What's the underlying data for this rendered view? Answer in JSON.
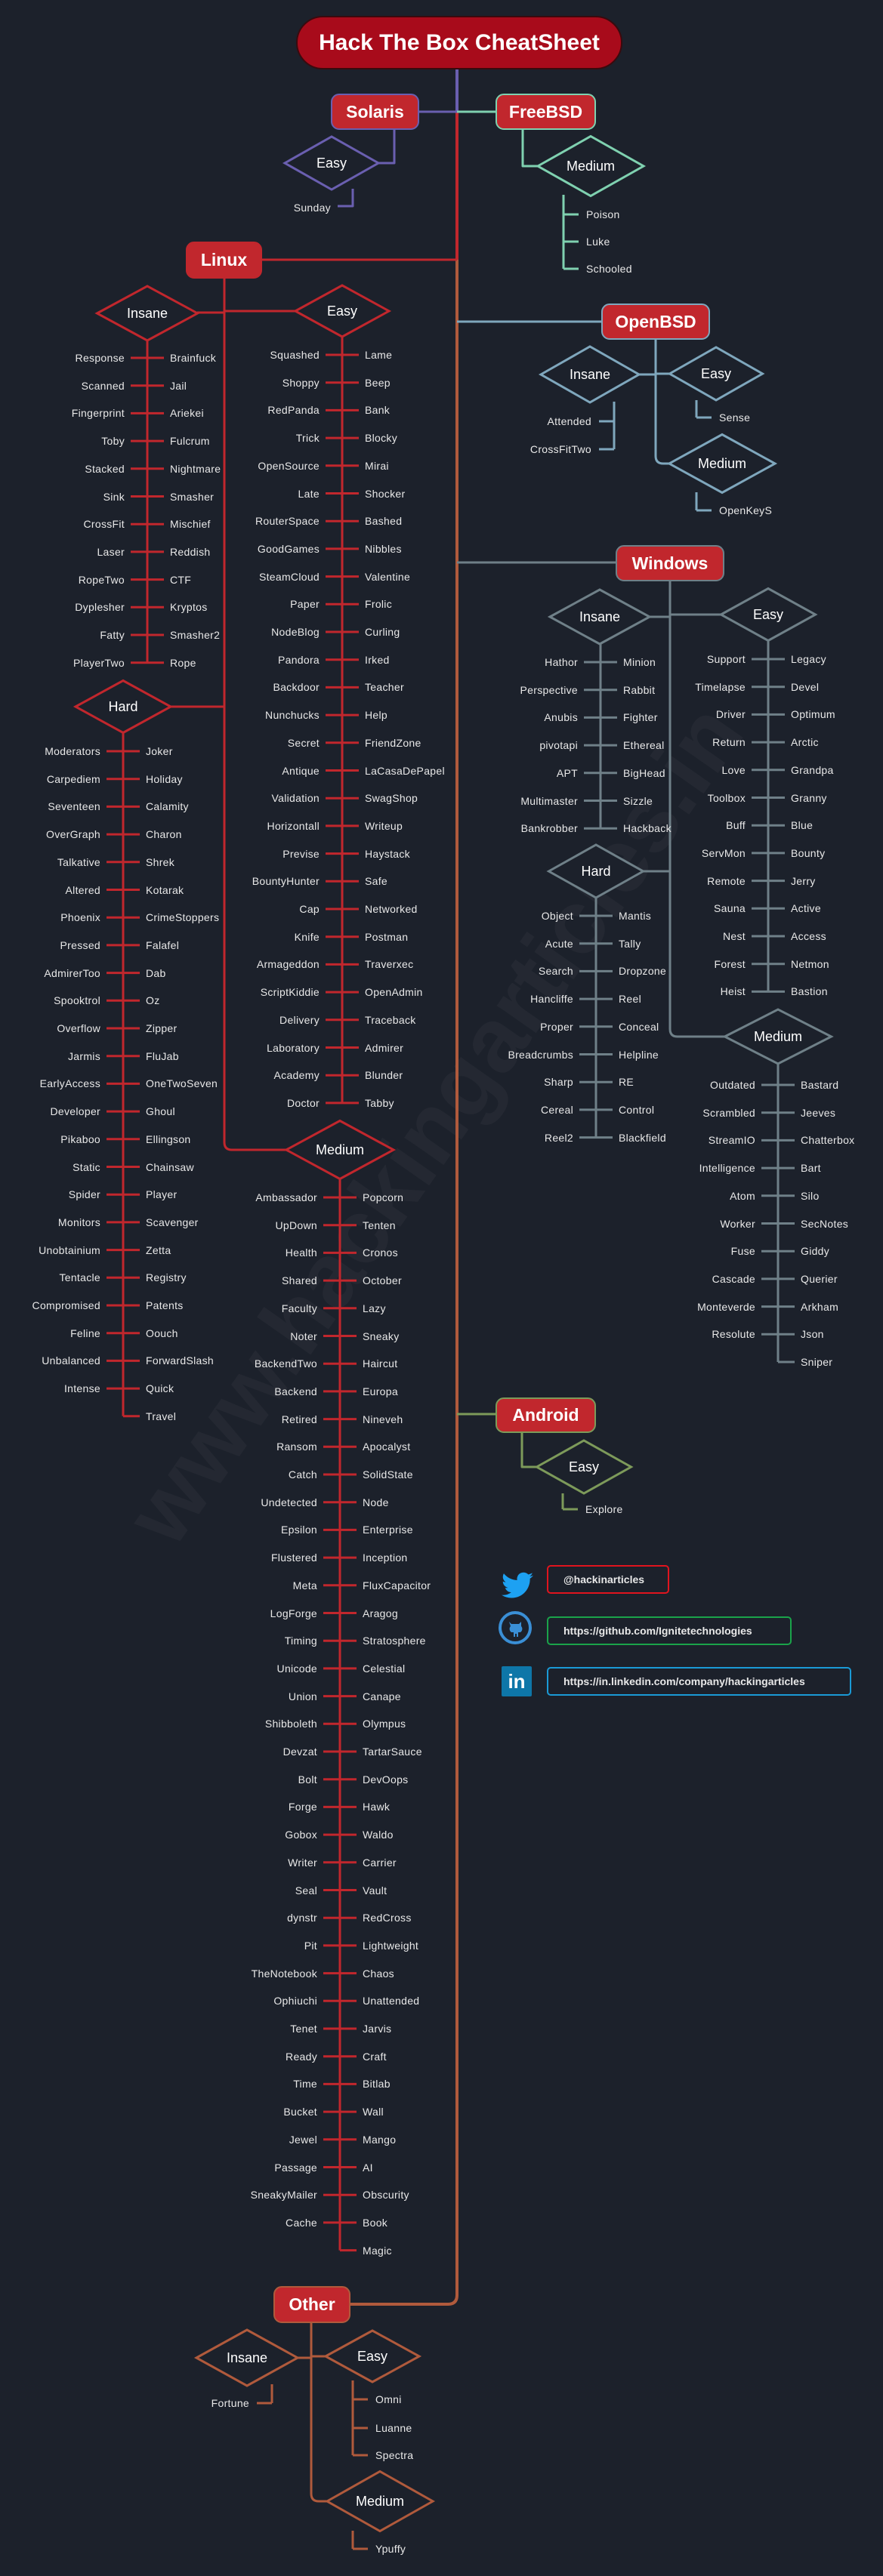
{
  "title": "Hack The Box CheatSheet",
  "watermark": "www.hackingarticles.in",
  "colors": {
    "background": "#1c212b",
    "title_fill": "#a80b1b",
    "category_fill": "#c1272d",
    "solaris": "#6a5fb0",
    "freebsd": "#7fd1b0",
    "linux": "#c1272d",
    "openbsd": "#7fa7bd",
    "windows": "#6f8088",
    "android": "#7d9a5a",
    "other": "#b05a3c"
  },
  "categories": {
    "solaris": {
      "label": "Solaris",
      "groups": {
        "easy": {
          "label": "Easy",
          "items": [
            "Sunday"
          ]
        }
      }
    },
    "freebsd": {
      "label": "FreeBSD",
      "groups": {
        "medium": {
          "label": "Medium",
          "items": [
            "Poison",
            "Luke",
            "Schooled"
          ]
        }
      }
    },
    "linux": {
      "label": "Linux",
      "groups": {
        "insane": {
          "label": "Insane",
          "left": [
            "Response",
            "Scanned",
            "Fingerprint",
            "Toby",
            "Stacked",
            "Sink",
            "CrossFit",
            "Laser",
            "RopeTwo",
            "Dyplesher",
            "Fatty",
            "PlayerTwo"
          ],
          "right": [
            "Brainfuck",
            "Jail",
            "Ariekei",
            "Fulcrum",
            "Nightmare",
            "Smasher",
            "Mischief",
            "Reddish",
            "CTF",
            "Kryptos",
            "Smasher2",
            "Rope"
          ]
        },
        "easy": {
          "label": "Easy",
          "left": [
            "Squashed",
            "Shoppy",
            "RedPanda",
            "Trick",
            "OpenSource",
            "Late",
            "RouterSpace",
            "GoodGames",
            "SteamCloud",
            "Paper",
            "NodeBlog",
            "Pandora",
            "Backdoor",
            "Nunchucks",
            "Secret",
            "Antique",
            "Validation",
            "Horizontall",
            "Previse",
            "BountyHunter",
            "Cap",
            "Knife",
            "Armageddon",
            "ScriptKiddie",
            "Delivery",
            "Laboratory",
            "Academy",
            "Doctor"
          ],
          "right": [
            "Lame",
            "Beep",
            "Bank",
            "Blocky",
            "Mirai",
            "Shocker",
            "Bashed",
            "Nibbles",
            "Valentine",
            "Frolic",
            "Curling",
            "Irked",
            "Teacher",
            "Help",
            "FriendZone",
            "LaCasaDePapel",
            "SwagShop",
            "Writeup",
            "Haystack",
            "Safe",
            "Networked",
            "Postman",
            "Traverxec",
            "OpenAdmin",
            "Traceback",
            "Admirer",
            "Blunder",
            "Tabby"
          ]
        },
        "hard": {
          "label": "Hard",
          "left": [
            "Moderators",
            "Carpediem",
            "Seventeen",
            "OverGraph",
            "Talkative",
            "Altered",
            "Phoenix",
            "Pressed",
            "AdmirerToo",
            "Spooktrol",
            "Overflow",
            "Jarmis",
            "EarlyAccess",
            "Developer",
            "Pikaboo",
            "Static",
            "Spider",
            "Monitors",
            "Unobtainium",
            "Tentacle",
            "Compromised",
            "Feline",
            "Unbalanced",
            "Intense"
          ],
          "right": [
            "Joker",
            "Holiday",
            "Calamity",
            "Charon",
            "Shrek",
            "Kotarak",
            "CrimeStoppers",
            "Falafel",
            "Dab",
            "Oz",
            "Zipper",
            "FluJab",
            "OneTwoSeven",
            "Ghoul",
            "Ellingson",
            "Chainsaw",
            "Player",
            "Scavenger",
            "Zetta",
            "Registry",
            "Patents",
            "Oouch",
            "ForwardSlash",
            "Quick",
            "Travel"
          ]
        },
        "medium": {
          "label": "Medium",
          "left": [
            "Ambassador",
            "UpDown",
            "Health",
            "Shared",
            "Faculty",
            "Noter",
            "BackendTwo",
            "Backend",
            "Retired",
            "Ransom",
            "Catch",
            "Undetected",
            "Epsilon",
            "Flustered",
            "Meta",
            "LogForge",
            "Timing",
            "Unicode",
            "Union",
            "Shibboleth",
            "Devzat",
            "Bolt",
            "Forge",
            "Gobox",
            "Writer",
            "Seal",
            "dynstr",
            "Pit",
            "TheNotebook",
            "Ophiuchi",
            "Tenet",
            "Ready",
            "Time",
            "Bucket",
            "Jewel",
            "Passage",
            "SneakyMailer",
            "Cache"
          ],
          "right": [
            "Popcorn",
            "Tenten",
            "Cronos",
            "October",
            "Lazy",
            "Sneaky",
            "Haircut",
            "Europa",
            "Nineveh",
            "Apocalyst",
            "SolidState",
            "Node",
            "Enterprise",
            "Inception",
            "FluxCapacitor",
            "Aragog",
            "Stratosphere",
            "Celestial",
            "Canape",
            "Olympus",
            "TartarSauce",
            "DevOops",
            "Hawk",
            "Waldo",
            "Carrier",
            "Vault",
            "RedCross",
            "Lightweight",
            "Chaos",
            "Unattended",
            "Jarvis",
            "Craft",
            "Bitlab",
            "Wall",
            "Mango",
            "AI",
            "Obscurity",
            "Book",
            "Magic"
          ]
        }
      }
    },
    "openbsd": {
      "label": "OpenBSD",
      "groups": {
        "insane": {
          "label": "Insane",
          "items": [
            "Attended",
            "CrossFitTwo"
          ]
        },
        "easy": {
          "label": "Easy",
          "items": [
            "Sense"
          ]
        },
        "medium": {
          "label": "Medium",
          "items": [
            "OpenKeyS"
          ]
        }
      }
    },
    "windows": {
      "label": "Windows",
      "groups": {
        "insane": {
          "label": "Insane",
          "left": [
            "Hathor",
            "Perspective",
            "Anubis",
            "pivotapi",
            "APT",
            "Multimaster",
            "Bankrobber"
          ],
          "right": [
            "Minion",
            "Rabbit",
            "Fighter",
            "Ethereal",
            "BigHead",
            "Sizzle",
            "Hackback"
          ]
        },
        "easy": {
          "label": "Easy",
          "left": [
            "Support",
            "Timelapse",
            "Driver",
            "Return",
            "Love",
            "Toolbox",
            "Buff",
            "ServMon",
            "Remote",
            "Sauna",
            "Nest",
            "Forest",
            "Heist"
          ],
          "right": [
            "Legacy",
            "Devel",
            "Optimum",
            "Arctic",
            "Grandpa",
            "Granny",
            "Blue",
            "Bounty",
            "Jerry",
            "Active",
            "Access",
            "Netmon",
            "Bastion"
          ]
        },
        "hard": {
          "label": "Hard",
          "left": [
            "Object",
            "Acute",
            "Search",
            "Hancliffe",
            "Proper",
            "Breadcrumbs",
            "Sharp",
            "Cereal",
            "Reel2"
          ],
          "right": [
            "Mantis",
            "Tally",
            "Dropzone",
            "Reel",
            "Conceal",
            "Helpline",
            "RE",
            "Control",
            "Blackfield"
          ]
        },
        "medium": {
          "label": "Medium",
          "left": [
            "Outdated",
            "Scrambled",
            "StreamIO",
            "Intelligence",
            "Atom",
            "Worker",
            "Fuse",
            "Cascade",
            "Monteverde",
            "Resolute"
          ],
          "right": [
            "Bastard",
            "Jeeves",
            "Chatterbox",
            "Bart",
            "Silo",
            "SecNotes",
            "Giddy",
            "Querier",
            "Arkham",
            "Json",
            "Sniper"
          ]
        }
      }
    },
    "android": {
      "label": "Android",
      "groups": {
        "easy": {
          "label": "Easy",
          "items": [
            "Explore"
          ]
        }
      }
    },
    "other": {
      "label": "Other",
      "groups": {
        "insane": {
          "label": "Insane",
          "items": [
            "Fortune"
          ]
        },
        "easy": {
          "label": "Easy",
          "items": [
            "Omni",
            "Luanne",
            "Spectra"
          ]
        },
        "medium": {
          "label": "Medium",
          "items": [
            "Ypuffy"
          ]
        }
      }
    }
  },
  "social": {
    "twitter": {
      "icon": "twitter-icon",
      "text": "@hackinarticles",
      "color": "#e0141e"
    },
    "github": {
      "icon": "github-icon",
      "text": "https://github.com/Ignitetechnologies",
      "color": "#1aa34a"
    },
    "linkedin": {
      "icon": "linkedin-icon",
      "text": "https://in.linkedin.com/company/hackingarticles",
      "color": "#1a9ad6"
    }
  }
}
